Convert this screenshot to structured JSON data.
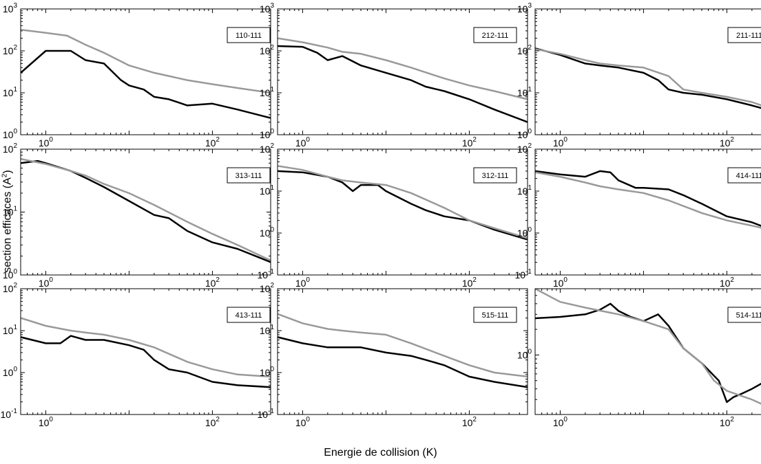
{
  "xlabel": "Energie de collision (K)",
  "ylabel": "section efficaces (A",
  "ylabel_sup": "2",
  "ylabel_close": ")",
  "colors": {
    "series_dark": "#000000",
    "series_light": "#999999",
    "frame": "#000000"
  },
  "chart_data": [
    {
      "type": "line",
      "label": "110-111",
      "x_scale": "log",
      "y_scale": "log",
      "xlim": [
        0.5,
        500
      ],
      "ylim": [
        1,
        1000
      ],
      "x_ticks": [
        [
          "10",
          "0"
        ],
        [
          "10",
          "2"
        ]
      ],
      "y_ticks": [
        [
          "10",
          "0"
        ],
        [
          "10",
          "1"
        ],
        [
          "10",
          "2"
        ],
        [
          "10",
          "3"
        ]
      ],
      "series": [
        {
          "color": "dark",
          "x": [
            0.5,
            1,
            2,
            3,
            5,
            8,
            10,
            15,
            20,
            30,
            50,
            100,
            200,
            500
          ],
          "y": [
            30,
            100,
            100,
            60,
            50,
            20,
            15,
            12,
            8,
            7,
            5,
            5.5,
            4,
            2.5
          ]
        },
        {
          "color": "light",
          "x": [
            0.5,
            1,
            1.8,
            3,
            5,
            10,
            20,
            50,
            100,
            200,
            500
          ],
          "y": [
            320,
            270,
            230,
            140,
            90,
            45,
            30,
            20,
            16,
            13,
            10
          ]
        }
      ]
    },
    {
      "type": "line",
      "label": "212-111",
      "x_scale": "log",
      "y_scale": "log",
      "xlim": [
        0.5,
        500
      ],
      "ylim": [
        1,
        1000
      ],
      "x_ticks": [
        [
          "10",
          "0"
        ],
        [
          "10",
          "2"
        ]
      ],
      "y_ticks": [
        [
          "10",
          "0"
        ],
        [
          "10",
          "1"
        ],
        [
          "10",
          "2"
        ],
        [
          "10",
          "3"
        ]
      ],
      "series": [
        {
          "color": "dark",
          "x": [
            0.5,
            1,
            1.5,
            2,
            3,
            5,
            10,
            20,
            30,
            50,
            100,
            200,
            500
          ],
          "y": [
            130,
            125,
            90,
            60,
            75,
            45,
            30,
            20,
            14,
            11,
            7,
            4,
            2
          ]
        },
        {
          "color": "light",
          "x": [
            0.5,
            1,
            2,
            3,
            5,
            10,
            20,
            50,
            100,
            200,
            500
          ],
          "y": [
            200,
            160,
            120,
            95,
            85,
            60,
            40,
            22,
            15,
            11,
            7
          ]
        }
      ]
    },
    {
      "type": "line",
      "label": "211-111",
      "x_scale": "log",
      "y_scale": "log",
      "xlim": [
        0.5,
        500
      ],
      "ylim": [
        1,
        1000
      ],
      "x_ticks": [
        [
          "10",
          "0"
        ],
        [
          "10",
          "2"
        ]
      ],
      "y_ticks": [
        [
          "10",
          "0"
        ],
        [
          "10",
          "1"
        ],
        [
          "10",
          "2"
        ],
        [
          "10",
          "3"
        ]
      ],
      "series": [
        {
          "color": "dark",
          "x": [
            0.5,
            1,
            2,
            3,
            5,
            10,
            15,
            20,
            30,
            50,
            100,
            200,
            500
          ],
          "y": [
            115,
            80,
            50,
            45,
            40,
            30,
            20,
            12,
            10,
            9,
            7,
            5,
            3
          ]
        },
        {
          "color": "light",
          "x": [
            0.5,
            1,
            2,
            3,
            5,
            10,
            20,
            30,
            50,
            100,
            200,
            500
          ],
          "y": [
            110,
            85,
            60,
            50,
            45,
            40,
            25,
            12,
            10,
            8,
            6,
            3.2
          ]
        }
      ]
    },
    {
      "type": "line",
      "label": "313-111",
      "x_scale": "log",
      "y_scale": "log",
      "xlim": [
        0.5,
        500
      ],
      "ylim": [
        1,
        100
      ],
      "x_ticks": [
        [
          "10",
          "0"
        ],
        [
          "10",
          "2"
        ]
      ],
      "y_ticks": [
        [
          "10",
          "0"
        ],
        [
          "10",
          "1"
        ],
        [
          "10",
          "2"
        ]
      ],
      "series": [
        {
          "color": "dark",
          "x": [
            0.5,
            0.8,
            1,
            2,
            3,
            5,
            10,
            20,
            30,
            50,
            100,
            200,
            500
          ],
          "y": [
            60,
            65,
            60,
            45,
            35,
            25,
            15,
            9,
            8,
            5,
            3.3,
            2.6,
            1.6
          ]
        },
        {
          "color": "light",
          "x": [
            0.5,
            1,
            2,
            3,
            5,
            10,
            20,
            50,
            100,
            200,
            500
          ],
          "y": [
            70,
            58,
            45,
            38,
            28,
            20,
            13,
            7,
            4.5,
            3,
            1.7
          ]
        }
      ]
    },
    {
      "type": "line",
      "label": "312-111",
      "x_scale": "log",
      "y_scale": "log",
      "xlim": [
        0.5,
        500
      ],
      "ylim": [
        0.1,
        100
      ],
      "x_ticks": [
        [
          "10",
          "0"
        ],
        [
          "10",
          "2"
        ]
      ],
      "y_ticks": [
        [
          "10",
          "-1"
        ],
        [
          "10",
          "0"
        ],
        [
          "10",
          "1"
        ],
        [
          "10",
          "2"
        ]
      ],
      "series": [
        {
          "color": "dark",
          "x": [
            0.5,
            1,
            2,
            3,
            4,
            5,
            8,
            10,
            20,
            30,
            50,
            100,
            200,
            500
          ],
          "y": [
            30,
            28,
            22,
            16,
            10,
            14,
            14,
            10,
            5,
            3.5,
            2.5,
            2,
            1.2,
            0.7
          ]
        },
        {
          "color": "light",
          "x": [
            0.5,
            1,
            2,
            3,
            5,
            10,
            20,
            50,
            100,
            200,
            500
          ],
          "y": [
            40,
            32,
            22,
            18,
            16,
            14,
            9,
            4,
            2,
            1.3,
            0.75
          ]
        }
      ]
    },
    {
      "type": "line",
      "label": "414-111",
      "x_scale": "log",
      "y_scale": "log",
      "xlim": [
        0.5,
        500
      ],
      "ylim": [
        0.1,
        100
      ],
      "x_ticks": [
        [
          "10",
          "0"
        ],
        [
          "10",
          "2"
        ]
      ],
      "y_ticks": [
        [
          "10",
          "-1"
        ],
        [
          "10",
          "0"
        ],
        [
          "10",
          "1"
        ],
        [
          "10",
          "2"
        ]
      ],
      "series": [
        {
          "color": "dark",
          "x": [
            0.5,
            1,
            2,
            3,
            4,
            5,
            8,
            10,
            20,
            30,
            50,
            100,
            200,
            500
          ],
          "y": [
            30,
            25,
            22,
            30,
            28,
            18,
            12,
            12,
            11,
            8,
            5,
            2.5,
            1.8,
            0.9
          ]
        },
        {
          "color": "light",
          "x": [
            0.5,
            1,
            2,
            3,
            5,
            10,
            20,
            50,
            100,
            200,
            500
          ],
          "y": [
            28,
            22,
            16,
            13,
            11,
            9,
            6,
            3,
            2,
            1.5,
            1
          ]
        }
      ]
    },
    {
      "type": "line",
      "label": "413-111",
      "x_scale": "log",
      "y_scale": "log",
      "xlim": [
        0.5,
        500
      ],
      "ylim": [
        0.1,
        100
      ],
      "x_ticks": [
        [
          "10",
          "0"
        ],
        [
          "10",
          "2"
        ]
      ],
      "y_ticks": [
        [
          "10",
          "-1"
        ],
        [
          "10",
          "0"
        ],
        [
          "10",
          "1"
        ],
        [
          "10",
          "2"
        ]
      ],
      "series": [
        {
          "color": "dark",
          "x": [
            0.5,
            1,
            1.5,
            2,
            3,
            5,
            10,
            15,
            20,
            30,
            50,
            100,
            200,
            500
          ],
          "y": [
            7,
            5,
            5,
            7.5,
            6,
            6,
            4.5,
            3.5,
            2,
            1.2,
            1,
            0.6,
            0.5,
            0.45
          ]
        },
        {
          "color": "light",
          "x": [
            0.5,
            1,
            2,
            3,
            5,
            10,
            20,
            50,
            100,
            200,
            500
          ],
          "y": [
            20,
            13,
            10,
            9,
            8,
            6,
            4,
            1.8,
            1.2,
            0.9,
            0.8
          ]
        }
      ]
    },
    {
      "type": "line",
      "label": "515-111",
      "x_scale": "log",
      "y_scale": "log",
      "xlim": [
        0.5,
        500
      ],
      "ylim": [
        0.1,
        100
      ],
      "x_ticks": [
        [
          "10",
          "0"
        ],
        [
          "10",
          "2"
        ]
      ],
      "y_ticks": [
        [
          "10",
          "-1"
        ],
        [
          "10",
          "0"
        ],
        [
          "10",
          "1"
        ],
        [
          "10",
          "2"
        ]
      ],
      "series": [
        {
          "color": "dark",
          "x": [
            0.5,
            1,
            2,
            3,
            5,
            10,
            20,
            30,
            50,
            100,
            200,
            500
          ],
          "y": [
            7,
            5,
            4,
            4,
            4,
            3,
            2.5,
            2,
            1.5,
            0.8,
            0.6,
            0.45
          ]
        },
        {
          "color": "light",
          "x": [
            0.5,
            1,
            2,
            3,
            5,
            10,
            20,
            50,
            100,
            200,
            500
          ],
          "y": [
            25,
            15,
            11,
            10,
            9,
            8,
            5,
            2.5,
            1.5,
            1,
            0.8
          ]
        }
      ]
    },
    {
      "type": "line",
      "label": "514-111",
      "x_scale": "log",
      "y_scale": "log",
      "xlim": [
        0.5,
        500
      ],
      "ylim": [
        0.2,
        6
      ],
      "x_ticks": [
        [
          "10",
          "0"
        ],
        [
          "10",
          "2"
        ]
      ],
      "y_ticks": [
        [
          "10",
          "0"
        ]
      ],
      "series": [
        {
          "color": "dark",
          "x": [
            0.5,
            1,
            2,
            3,
            4,
            5,
            7,
            10,
            15,
            20,
            30,
            50,
            80,
            100,
            120,
            150,
            200,
            300,
            500
          ],
          "y": [
            2.7,
            2.8,
            3.0,
            3.4,
            4.0,
            3.3,
            2.8,
            2.5,
            3.0,
            2.2,
            1.2,
            0.8,
            0.5,
            0.28,
            0.32,
            0.35,
            0.4,
            0.5,
            0.65
          ]
        },
        {
          "color": "light",
          "x": [
            0.5,
            1,
            2,
            5,
            10,
            20,
            30,
            50,
            70,
            100,
            150,
            200,
            300,
            500
          ],
          "y": [
            6,
            4.2,
            3.6,
            3.0,
            2.5,
            2.0,
            1.2,
            0.8,
            0.5,
            0.38,
            0.33,
            0.3,
            0.25,
            0.2
          ]
        }
      ]
    }
  ]
}
